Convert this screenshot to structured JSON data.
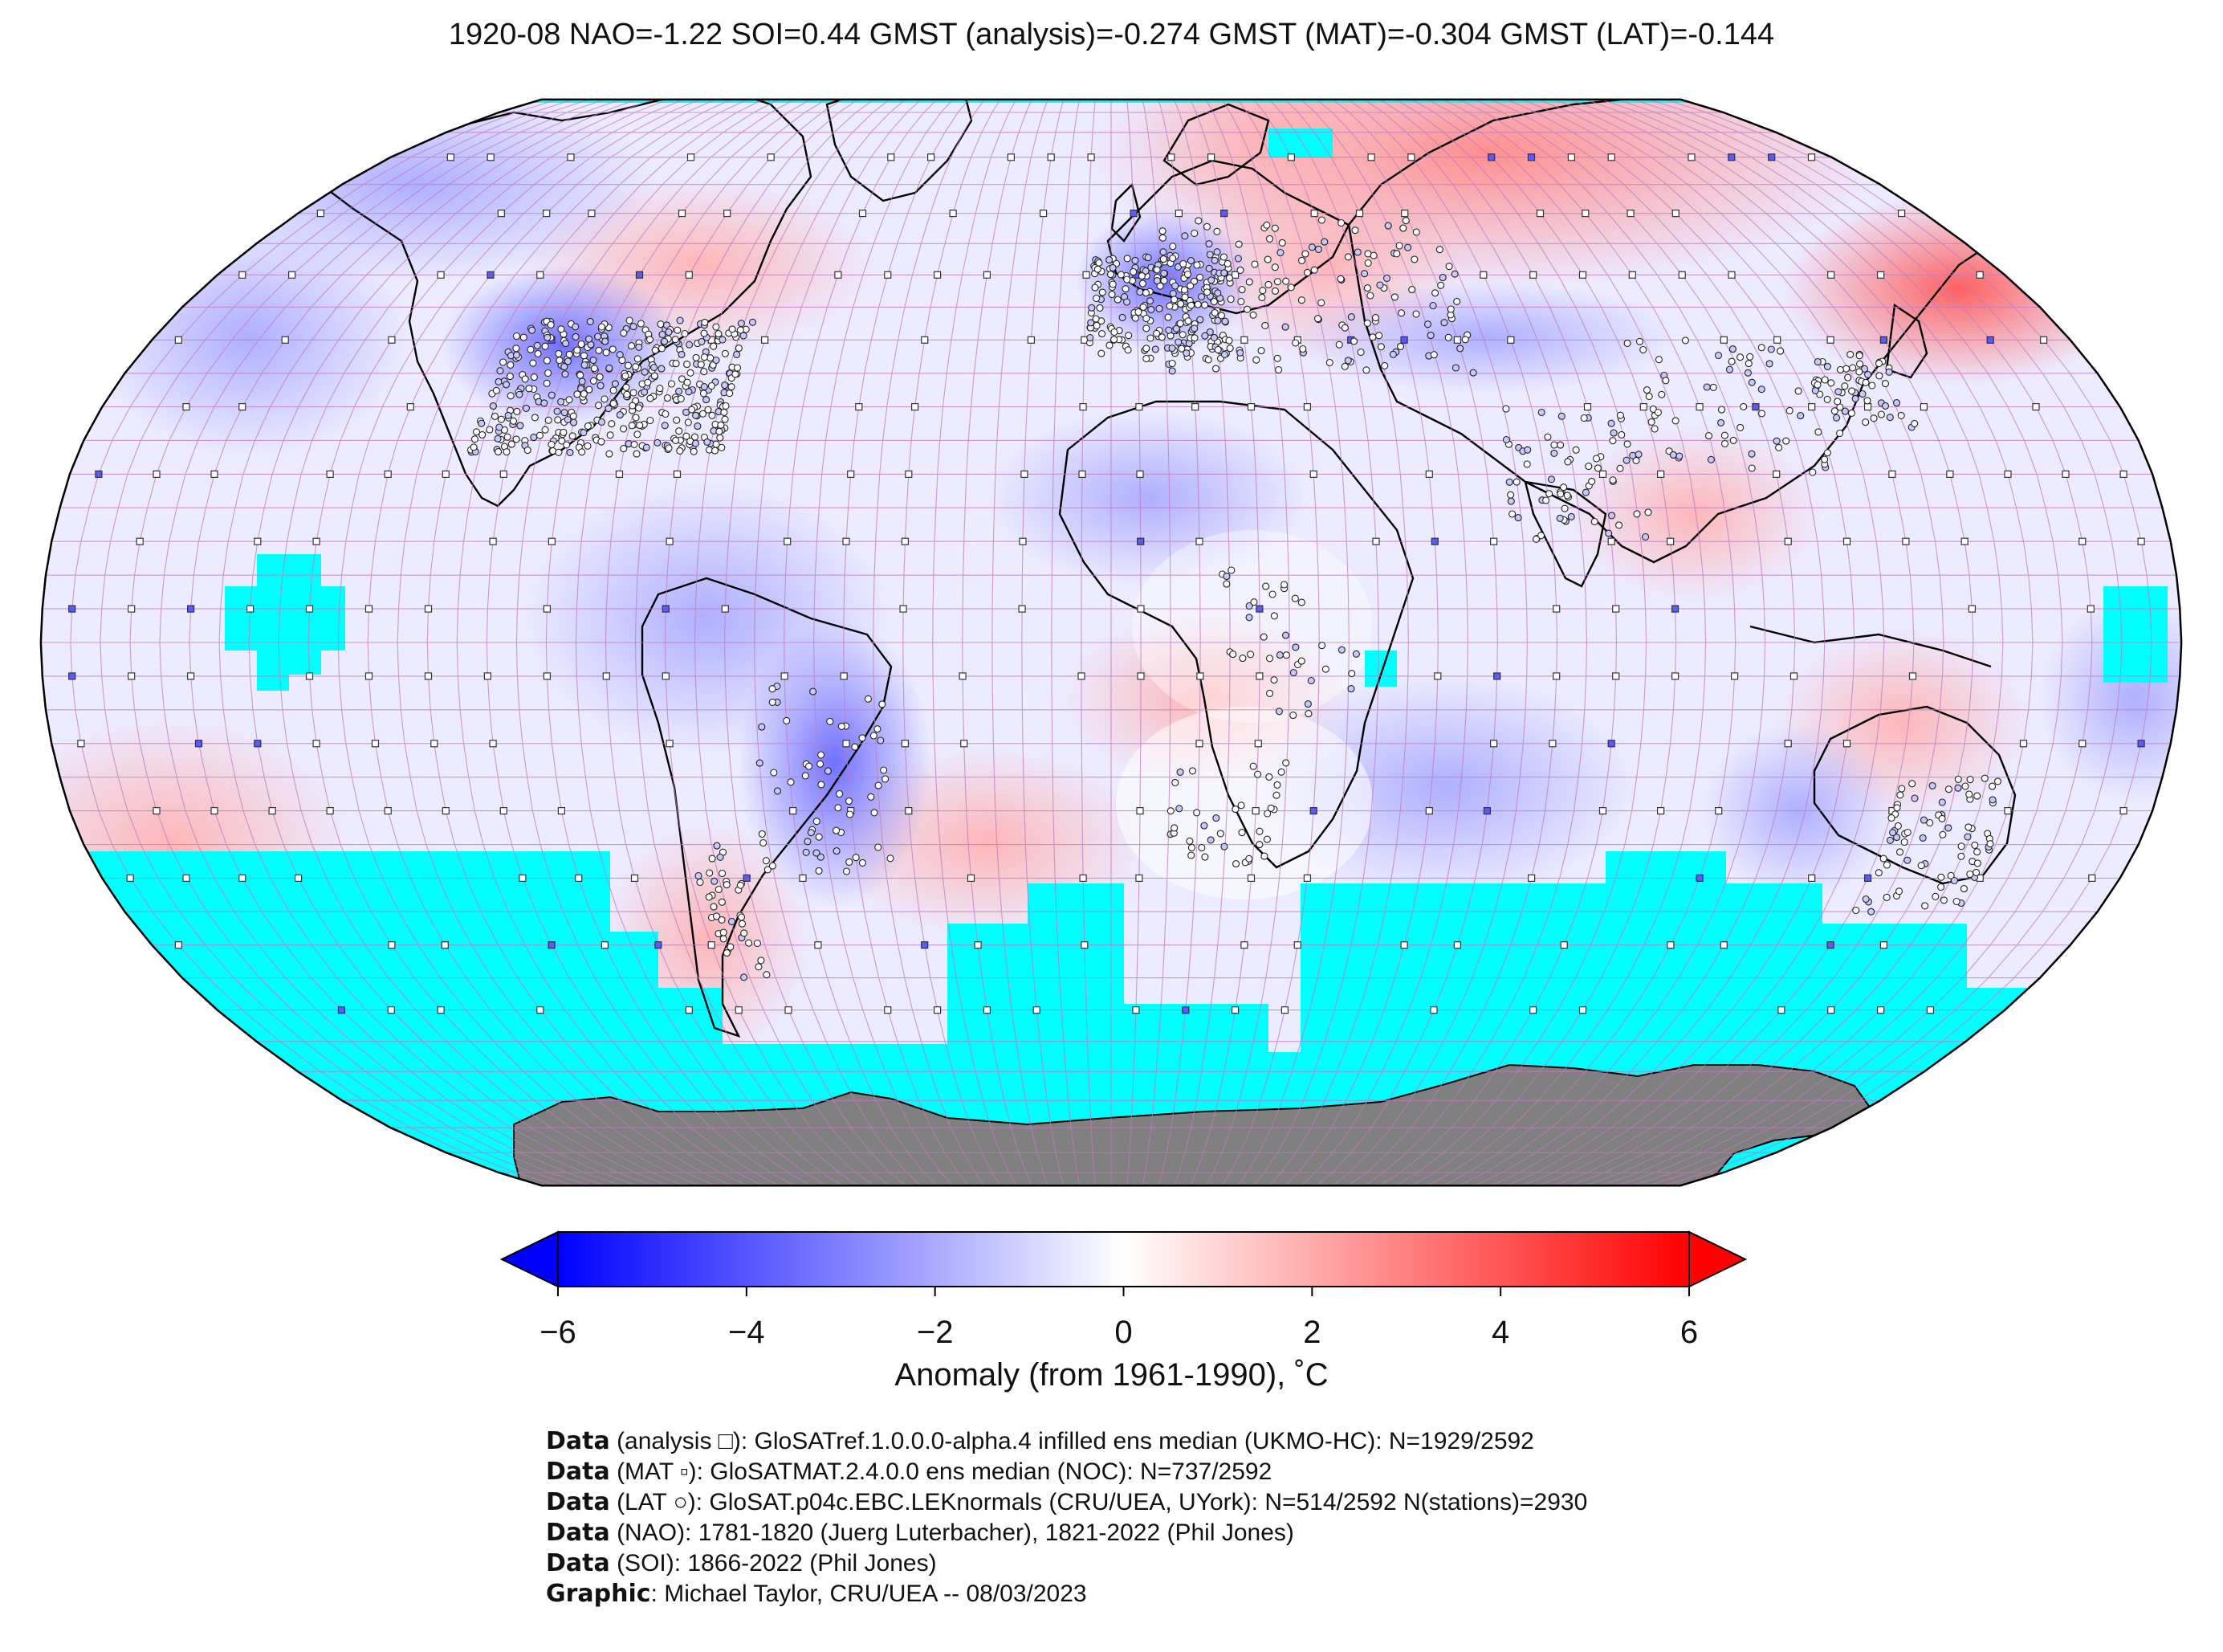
{
  "title": "1920-08 NAO=-1.22 SOI=0.44 GMST (analysis)=-0.274 GMST (MAT)=-0.304 GMST (LAT)=-0.144",
  "map": {
    "projection": "Robinson",
    "nodata_color": "#00ffff",
    "land_mask_color": "#808080",
    "grid_color": "#c07ac0",
    "anomaly_regions": [
      {
        "region": "Siberia / N Asia",
        "anomaly": 2.5
      },
      {
        "region": "Eastern Asia / Sea of Okhotsk",
        "anomaly": 3.0
      },
      {
        "region": "Western Russia",
        "anomaly": 2.0
      },
      {
        "region": "Eastern USA",
        "anomaly": 1.5
      },
      {
        "region": "Central USA",
        "anomaly": -3.0
      },
      {
        "region": "Western Europe",
        "anomaly": -2.5
      },
      {
        "region": "Greenland / Canada",
        "anomaly": -1.5
      },
      {
        "region": "Sahel",
        "anomaly": -2.0
      },
      {
        "region": "South America east",
        "anomaly": -2.5
      },
      {
        "region": "Australia east",
        "anomaly": 1.0
      }
    ]
  },
  "colorbar": {
    "min": -6,
    "max": 6,
    "ticks": [
      "−6",
      "−4",
      "−2",
      "0",
      "2",
      "4",
      "6"
    ],
    "tick_values": [
      -6,
      -4,
      -2,
      0,
      2,
      4,
      6
    ],
    "label": "Anomaly (from 1961-1990), ˚C",
    "colors": [
      "#0000ff",
      "#ffffff",
      "#ff0000"
    ]
  },
  "credits": [
    {
      "key": "Data",
      "text": " (analysis □): GloSATref.1.0.0.0-alpha.4 infilled ens median (UKMO-HC): N=1929/2592"
    },
    {
      "key": "Data",
      "text": " (MAT ▫): GloSATMAT.2.4.0.0 ens median (NOC): N=737/2592"
    },
    {
      "key": "Data",
      "text": " (LAT ○): GloSAT.p04c.EBC.LEKnormals (CRU/UEA, UYork): N=514/2592 N(stations)=2930"
    },
    {
      "key": "Data",
      "text": " (NAO): 1781-1820 (Juerg Luterbacher), 1821-2022 (Phil Jones)"
    },
    {
      "key": "Data",
      "text": " (SOI): 1866-2022 (Phil Jones)"
    },
    {
      "key": "Graphic",
      "text": ": Michael Taylor, CRU/UEA -- 08/03/2023"
    }
  ]
}
